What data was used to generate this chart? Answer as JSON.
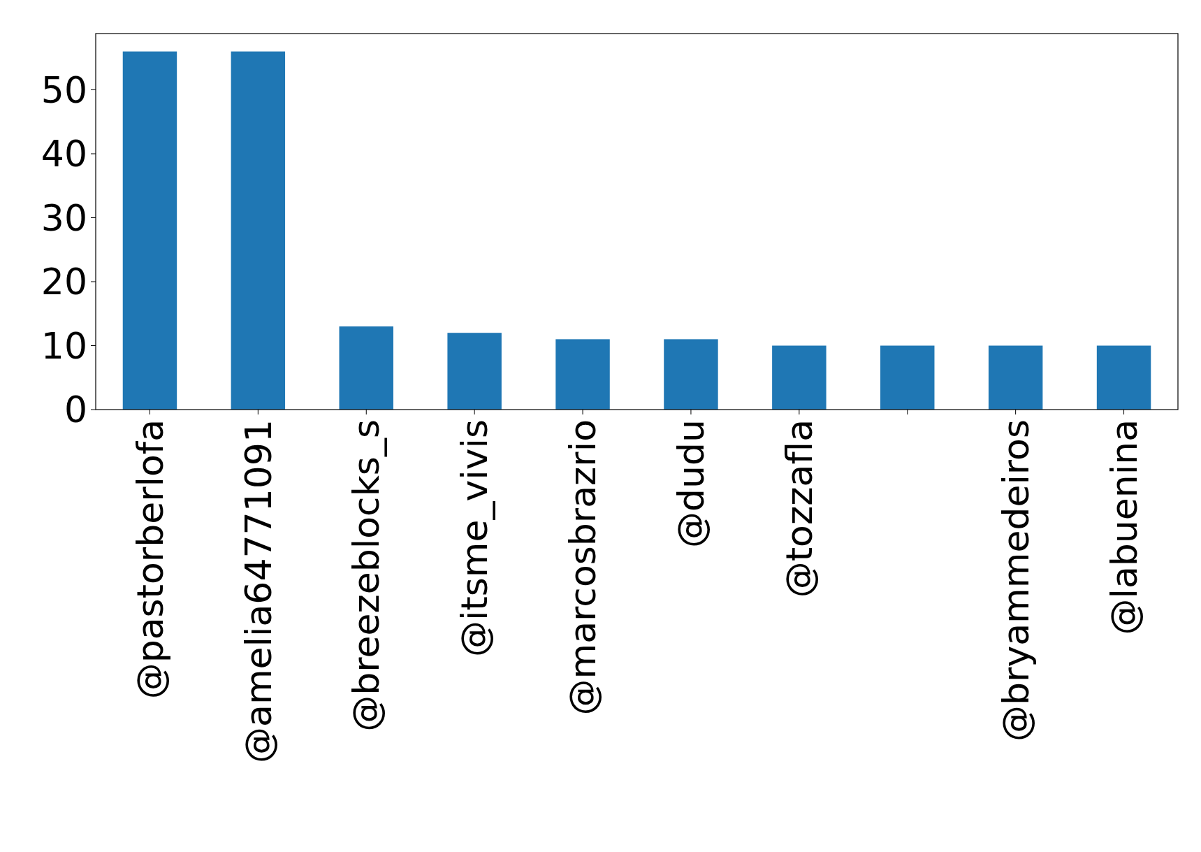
{
  "chart_data": {
    "type": "bar",
    "categories": [
      "@pastorberlofa",
      "@amelia64771091",
      "@breezeblocks_s",
      "@itsme_vivis",
      "@marcosbrazrio",
      "@dudu",
      "@tozzafla",
      null,
      "@bryammedeiros",
      "@labuenina"
    ],
    "values": [
      56,
      56,
      13,
      12,
      11,
      11,
      10,
      10,
      10,
      10
    ],
    "color": "#1f77b4",
    "ylim": [
      0,
      58.8
    ],
    "yticks": [
      0,
      10,
      20,
      30,
      40,
      50
    ]
  }
}
